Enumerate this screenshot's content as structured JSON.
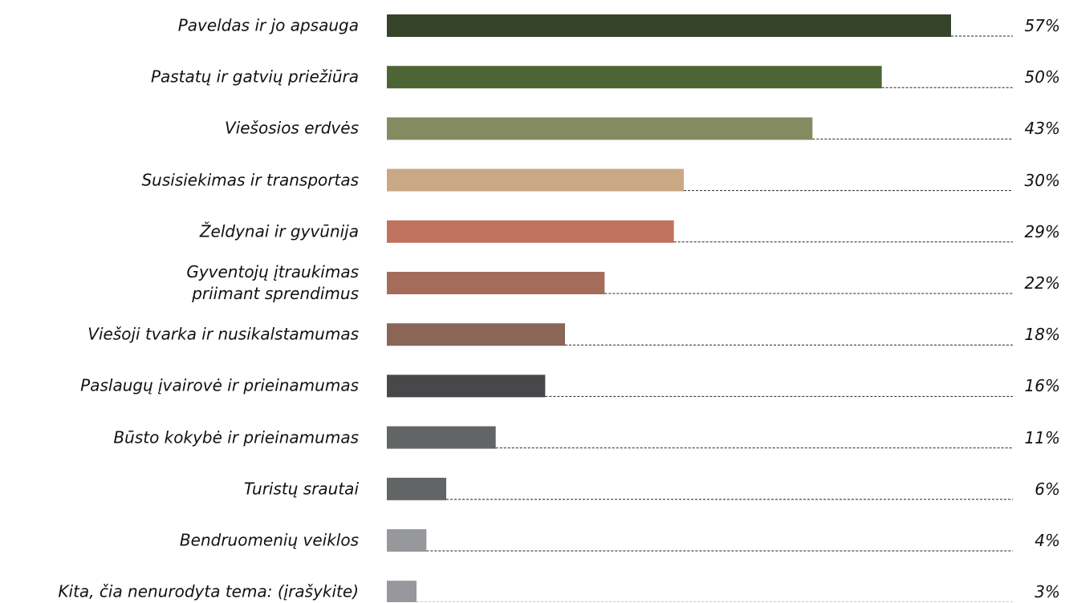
{
  "chart_data": {
    "type": "bar",
    "orientation": "horizontal",
    "categories": [
      "Paveldas ir jo apsauga",
      "Pastatų ir gatvių priežiūra",
      "Viešosios erdvės",
      "Susisiekimas ir transportas",
      "Želdynai ir gyvūnija",
      "Gyventojų įtraukimas\npriimant sprendimus",
      "Viešoji tvarka  ir nusikalstamumas",
      "Paslaugų įvairovė ir prieinamumas",
      "Būsto kokybė  ir prieinamumas",
      "Turistų srautai",
      "Bendruomenių veiklos",
      "Kita, čia nenurodyta tema: (įrašykite)"
    ],
    "values": [
      57,
      50,
      43,
      30,
      29,
      22,
      18,
      16,
      11,
      6,
      4,
      3
    ],
    "value_labels": [
      "57%",
      "50%",
      "43%",
      "30%",
      "29%",
      "22%",
      "18%",
      "16%",
      "11%",
      "6%",
      "4%",
      "3%"
    ],
    "colors": [
      "#354428",
      "#4d6535",
      "#838b61",
      "#c9a985",
      "#bf735e",
      "#a56c5c",
      "#8a6657",
      "#48484a",
      "#636466",
      "#636466",
      "#97989b",
      "#97989b"
    ],
    "xlim": [
      0,
      60
    ]
  }
}
